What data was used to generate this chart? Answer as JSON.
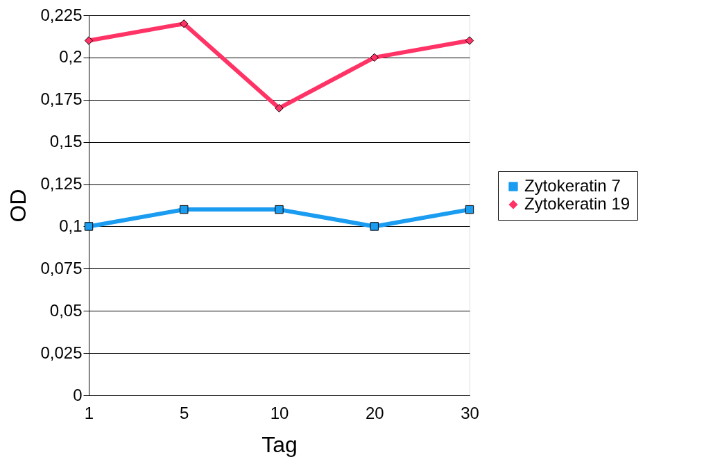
{
  "chart_data": {
    "type": "line",
    "xlabel": "Tag",
    "ylabel": "OD",
    "categories": [
      "1",
      "5",
      "10",
      "20",
      "30"
    ],
    "series": [
      {
        "name": "Zytokeratin 7",
        "color": "#1a9cf0",
        "marker": "square",
        "values": [
          0.1,
          0.11,
          0.11,
          0.1,
          0.11
        ]
      },
      {
        "name": "Zytokeratin 19",
        "color": "#ff3366",
        "marker": "diamond",
        "values": [
          0.21,
          0.22,
          0.17,
          0.2,
          0.21
        ]
      }
    ],
    "ylim": [
      0,
      0.225
    ],
    "yticks": [
      0,
      {
        "value": 0.025,
        "label": "0,025"
      },
      {
        "value": 0.05,
        "label": "0,05"
      },
      {
        "value": 0.075,
        "label": "0,075"
      },
      {
        "value": 0.1,
        "label": "0,1"
      },
      {
        "value": 0.125,
        "label": "0,125"
      },
      {
        "value": 0.15,
        "label": "0,15"
      },
      {
        "value": 0.175,
        "label": "0,175"
      },
      {
        "value": 0.2,
        "label": "0,2"
      },
      {
        "value": 0.225,
        "label": "0,225"
      }
    ],
    "grid": "y",
    "legend": "right",
    "line_style": "solid"
  }
}
